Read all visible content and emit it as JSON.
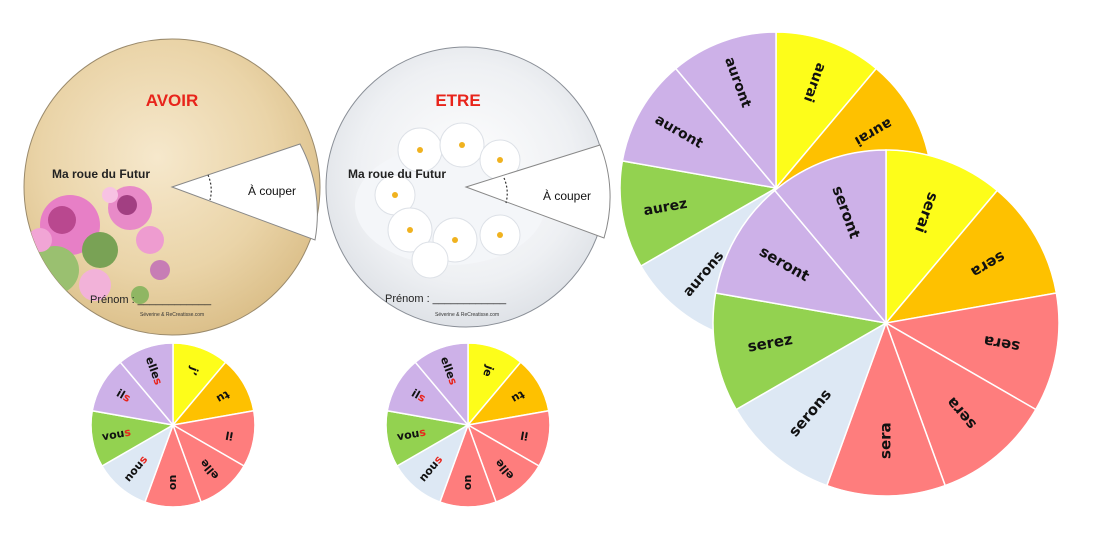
{
  "colors": {
    "yellow": "#fdfd1a",
    "orange": "#fec100",
    "red": "#fe7d7d",
    "lightblue": "#dde8f4",
    "green": "#93d250",
    "purple": "#cdb1e8",
    "title_red": "#e8241b",
    "red_letter": "#e8241b"
  },
  "avoir_cover": {
    "title": "AVOIR",
    "subtitle": "Ma roue du Futur",
    "cut_label": "À couper",
    "name_label": "Prénom : ____________",
    "credit": "Séverine & ReCreatisse.com"
  },
  "etre_cover": {
    "title": "ETRE",
    "subtitle": "Ma roue du Futur",
    "cut_label": "À couper",
    "name_label": "Prénom : ____________",
    "credit": "Séverine & ReCreatisse.com"
  },
  "pronoun_wheel_1": {
    "segments": [
      {
        "label": "j’",
        "color": "yellow"
      },
      {
        "label": "tu",
        "color": "orange"
      },
      {
        "label": "il",
        "color": "red"
      },
      {
        "label": "elle",
        "color": "red"
      },
      {
        "label": "on",
        "color": "red"
      },
      {
        "label": "nous",
        "color": "lightblue",
        "red_letter": "s"
      },
      {
        "label": "vous",
        "color": "green",
        "red_letter": "s"
      },
      {
        "label": "ils",
        "color": "purple",
        "red_letter": "s"
      },
      {
        "label": "elles",
        "color": "purple",
        "red_letter": "s"
      }
    ]
  },
  "pronoun_wheel_2": {
    "segments": [
      {
        "label": "je",
        "color": "yellow"
      },
      {
        "label": "tu",
        "color": "orange"
      },
      {
        "label": "il",
        "color": "red"
      },
      {
        "label": "elle",
        "color": "red"
      },
      {
        "label": "on",
        "color": "red"
      },
      {
        "label": "nous",
        "color": "lightblue",
        "red_letter": "s"
      },
      {
        "label": "vous",
        "color": "green",
        "red_letter": "s"
      },
      {
        "label": "ils",
        "color": "purple",
        "red_letter": "s"
      },
      {
        "label": "elles",
        "color": "purple",
        "red_letter": "s"
      }
    ]
  },
  "avoir_wheel": {
    "segments": [
      {
        "label": "aurai",
        "color": "yellow"
      },
      {
        "label": "aurai",
        "color": "orange"
      },
      {
        "label": "",
        "color": "red"
      },
      {
        "label": "",
        "color": "red"
      },
      {
        "label": "",
        "color": "red"
      },
      {
        "label": "aurons",
        "color": "lightblue"
      },
      {
        "label": "aurez",
        "color": "green"
      },
      {
        "label": "auront",
        "color": "purple"
      },
      {
        "label": "auront",
        "color": "purple"
      }
    ]
  },
  "etre_wheel": {
    "segments": [
      {
        "label": "serai",
        "color": "yellow"
      },
      {
        "label": "sera",
        "color": "orange"
      },
      {
        "label": "sera",
        "color": "red"
      },
      {
        "label": "sera",
        "color": "red"
      },
      {
        "label": "sera",
        "color": "red"
      },
      {
        "label": "serons",
        "color": "lightblue"
      },
      {
        "label": "serez",
        "color": "green"
      },
      {
        "label": "seront",
        "color": "purple"
      },
      {
        "label": "seront",
        "color": "purple"
      }
    ]
  }
}
